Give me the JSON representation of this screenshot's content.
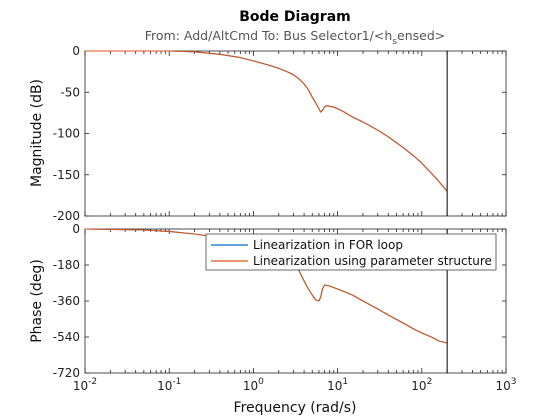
{
  "chart_data": {
    "type": "line",
    "title": "Bode Diagram",
    "subtitle_parts": [
      "From: Add/AltCmd  To: Bus Selector1/<h",
      "s",
      "ensed>"
    ],
    "xlabel": "Frequency  (rad/s)",
    "xscale": "log",
    "xlim": [
      0.01,
      1000
    ],
    "x_ticks": [
      {
        "value": 0.01,
        "base": "10",
        "exp": "-2"
      },
      {
        "value": 0.1,
        "base": "10",
        "exp": "-1"
      },
      {
        "value": 1,
        "base": "10",
        "exp": "0"
      },
      {
        "value": 10,
        "base": "10",
        "exp": "1"
      },
      {
        "value": 100,
        "base": "10",
        "exp": "2"
      },
      {
        "value": 1000,
        "base": "10",
        "exp": "3"
      }
    ],
    "vline_x": 200,
    "legend": {
      "placement": "top-right of phase plot",
      "entries": [
        {
          "name": "Linearization in FOR loop",
          "color": "#0072BD"
        },
        {
          "name": "Linearization using parameter structure",
          "color": "#D95319"
        }
      ]
    },
    "panels": [
      {
        "id": "magnitude",
        "ylabel": "Magnitude (dB)",
        "ylim": [
          -200,
          0
        ],
        "yticks": [
          0,
          -50,
          -100,
          -150,
          -200
        ],
        "ytick_labels": [
          "0",
          "-50",
          "-100",
          "-150",
          "-200"
        ],
        "series": [
          {
            "name": "Linearization in FOR loop",
            "color": "#0072BD",
            "x": [
              0.01,
              0.05,
              0.1,
              0.2,
              0.4,
              0.7,
              1,
              1.5,
              2,
              2.5,
              3,
              3.5,
              4,
              4.5,
              5,
              5.5,
              6,
              6.3,
              6.6,
              7,
              7.5,
              8,
              9,
              10,
              12,
              15,
              20,
              30,
              40,
              60,
              80,
              100,
              150,
              200
            ],
            "y": [
              0,
              0,
              0,
              -1,
              -4,
              -8,
              -12,
              -17,
              -21,
              -25,
              -29,
              -34,
              -40,
              -47,
              -56,
              -63,
              -70,
              -74,
              -72,
              -68,
              -66,
              -67,
              -68,
              -70,
              -74,
              -80,
              -86,
              -96,
              -104,
              -117,
              -127,
              -136,
              -155,
              -170
            ]
          },
          {
            "name": "Linearization using parameter structure",
            "color": "#D95319",
            "x": [
              0.01,
              0.05,
              0.1,
              0.2,
              0.4,
              0.7,
              1,
              1.5,
              2,
              2.5,
              3,
              3.5,
              4,
              4.5,
              5,
              5.5,
              6,
              6.3,
              6.6,
              7,
              7.5,
              8,
              9,
              10,
              12,
              15,
              20,
              30,
              40,
              60,
              80,
              100,
              150,
              200
            ],
            "y": [
              0,
              0,
              0,
              -1,
              -4,
              -8,
              -12,
              -17,
              -21,
              -25,
              -29,
              -34,
              -40,
              -47,
              -56,
              -63,
              -70,
              -74,
              -72,
              -68,
              -66,
              -67,
              -68,
              -70,
              -74,
              -80,
              -86,
              -96,
              -104,
              -117,
              -127,
              -136,
              -155,
              -170
            ]
          }
        ]
      },
      {
        "id": "phase",
        "ylabel": "Phase (deg)",
        "ylim": [
          -720,
          0
        ],
        "yticks": [
          0,
          -180,
          -360,
          -540,
          -720
        ],
        "ytick_labels": [
          "0",
          "-180",
          "-360",
          "-540",
          "-720"
        ],
        "series": [
          {
            "name": "Linearization in FOR loop",
            "color": "#0072BD",
            "x": [
              0.01,
              0.05,
              0.1,
              0.2,
              0.3,
              0.5,
              0.7,
              1,
              1.5,
              2,
              2.5,
              3,
              3.5,
              4,
              4.5,
              5,
              5.5,
              6,
              6.3,
              6.6,
              7,
              8,
              10,
              15,
              20,
              30,
              40,
              60,
              80,
              100,
              130,
              160,
              200
            ],
            "y": [
              0,
              -5,
              -12,
              -25,
              -35,
              -50,
              -62,
              -75,
              -95,
              -115,
              -140,
              -170,
              -210,
              -260,
              -300,
              -330,
              -355,
              -360,
              -340,
              -300,
              -280,
              -285,
              -300,
              -330,
              -360,
              -400,
              -430,
              -470,
              -500,
              -520,
              -540,
              -560,
              -570
            ]
          },
          {
            "name": "Linearization using parameter structure",
            "color": "#D95319",
            "x": [
              0.01,
              0.05,
              0.1,
              0.2,
              0.3,
              0.5,
              0.7,
              1,
              1.5,
              2,
              2.5,
              3,
              3.5,
              4,
              4.5,
              5,
              5.5,
              6,
              6.3,
              6.6,
              7,
              8,
              10,
              15,
              20,
              30,
              40,
              60,
              80,
              100,
              130,
              160,
              200
            ],
            "y": [
              0,
              -5,
              -12,
              -25,
              -35,
              -50,
              -62,
              -75,
              -95,
              -115,
              -140,
              -170,
              -210,
              -260,
              -300,
              -330,
              -355,
              -360,
              -340,
              -300,
              -280,
              -285,
              -300,
              -330,
              -360,
              -400,
              -430,
              -470,
              -500,
              -520,
              -540,
              -560,
              -570
            ]
          }
        ]
      }
    ]
  }
}
